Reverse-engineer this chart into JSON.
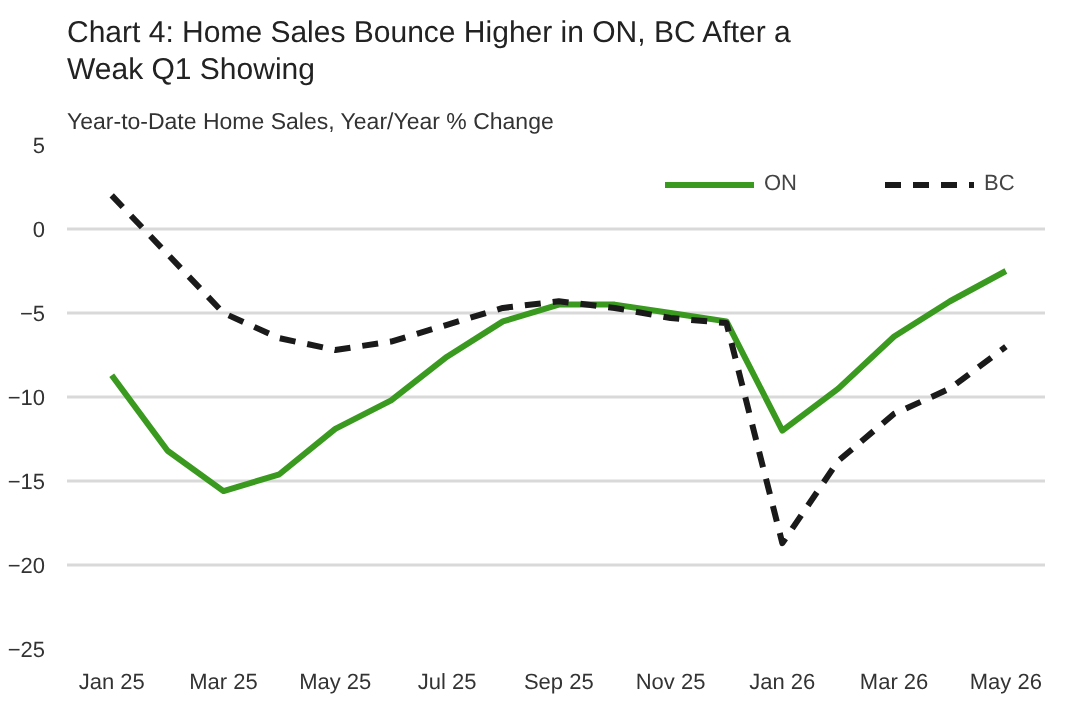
{
  "chart_data": {
    "type": "line",
    "title": "Chart 4: Home Sales Bounce Higher in ON, BC After a\nWeak Q1 Showing",
    "subtitle": "Year-to-Date Home Sales, Year/Year % Change",
    "categories": [
      "Jan 25",
      null,
      "Mar 25",
      null,
      "May 25",
      null,
      "Jul 25",
      null,
      "Sep 25",
      null,
      "Nov 25",
      null,
      "Jan 26",
      null,
      "Mar 26",
      null,
      "May 26"
    ],
    "series": [
      {
        "name": "ON",
        "color": "#3a9a1f",
        "line_style": "solid",
        "values": [
          -8.7,
          -13.2,
          -15.6,
          -14.6,
          -11.9,
          -10.2,
          -7.6,
          -5.5,
          -4.5,
          -4.5,
          -5.0,
          -5.5,
          -12.0,
          -9.5,
          -6.4,
          -4.3,
          -2.5
        ]
      },
      {
        "name": "BC",
        "color": "#1a1a1a",
        "line_style": "dashed",
        "values": [
          2.0,
          -1.5,
          -5.0,
          -6.5,
          -7.2,
          -6.7,
          -5.7,
          -4.7,
          -4.3,
          -4.7,
          -5.3,
          -5.6,
          -18.7,
          -13.8,
          -11.0,
          -9.5,
          -7.0
        ]
      }
    ],
    "ylim": [
      -25,
      5
    ],
    "yticks": [
      -25,
      -20,
      -15,
      -10,
      -5,
      0,
      5
    ],
    "grid": "y",
    "legend": "top right",
    "marker": "none"
  }
}
